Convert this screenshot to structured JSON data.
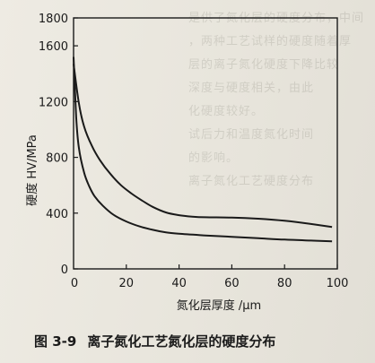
{
  "background_text": [
    "是供了氮化层的硬度分布，中间",
    "，两种工艺试样的硬度随着厚",
    "层的离子氮化硬度下降比较",
    "深度与硬度相关，由此",
    "化硬度较好。",
    "试后力和温度氮化时间",
    "的影响。",
    "",
    "离子氮化工艺硬度分布"
  ],
  "caption": {
    "number": "图 3-9",
    "text": "离子氮化工艺氮化层的硬度分布"
  },
  "chart_data": {
    "type": "line",
    "xlabel": "氮化层厚度 /μm",
    "ylabel": "硬度 HV/MPa",
    "xlim": [
      0,
      100
    ],
    "ylim": [
      0,
      1800
    ],
    "xticks": [
      20,
      40,
      60,
      80,
      100
    ],
    "yticks": [
      0,
      400,
      800,
      1200,
      1600,
      1800
    ],
    "x_origin_label": "0",
    "grid": false,
    "series": [
      {
        "color": "#1a1a1a",
        "points": [
          [
            0,
            1470
          ],
          [
            2,
            1190
          ],
          [
            4,
            1020
          ],
          [
            7,
            880
          ],
          [
            10,
            780
          ],
          [
            14,
            680
          ],
          [
            18,
            600
          ],
          [
            22,
            540
          ],
          [
            26,
            490
          ],
          [
            30,
            445
          ],
          [
            35,
            405
          ],
          [
            40,
            385
          ],
          [
            45,
            375
          ],
          [
            50,
            370
          ],
          [
            60,
            368
          ],
          [
            70,
            360
          ],
          [
            80,
            345
          ],
          [
            90,
            322
          ],
          [
            98,
            300
          ]
        ]
      },
      {
        "color": "#1a1a1a",
        "points": [
          [
            0,
            1520
          ],
          [
            1,
            1090
          ],
          [
            2,
            870
          ],
          [
            4,
            690
          ],
          [
            6,
            590
          ],
          [
            8,
            520
          ],
          [
            11,
            455
          ],
          [
            15,
            390
          ],
          [
            20,
            340
          ],
          [
            25,
            305
          ],
          [
            30,
            280
          ],
          [
            35,
            262
          ],
          [
            40,
            252
          ],
          [
            50,
            240
          ],
          [
            60,
            230
          ],
          [
            70,
            220
          ],
          [
            80,
            210
          ],
          [
            90,
            203
          ],
          [
            98,
            198
          ]
        ]
      }
    ]
  }
}
